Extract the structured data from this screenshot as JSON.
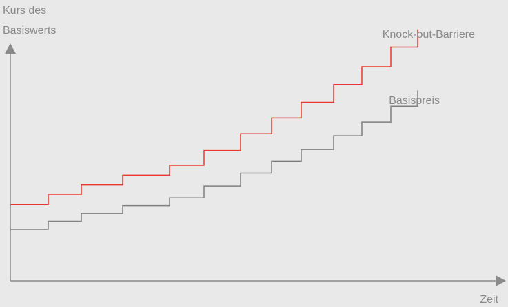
{
  "chart_data": {
    "type": "line",
    "title": "",
    "ylabel_lines": [
      "Kurs des",
      "Basiswerts"
    ],
    "xlabel": "Zeit",
    "grid": false,
    "legend": "none",
    "series": [
      {
        "name": "Knock-out-Barriere",
        "color": "#e8382e",
        "steps": [
          {
            "x": 0,
            "y": 0.25
          },
          {
            "x": 1,
            "y": 0.35
          },
          {
            "x": 2,
            "y": 0.45
          },
          {
            "x": 3,
            "y": 0.55
          },
          {
            "x": 4,
            "y": 0.65
          },
          {
            "x": 5,
            "y": 0.8
          },
          {
            "x": 6,
            "y": 0.97
          },
          {
            "x": 7,
            "y": 1.13
          },
          {
            "x": 8,
            "y": 1.29
          },
          {
            "x": 9,
            "y": 1.47
          },
          {
            "x": 10,
            "y": 1.65
          },
          {
            "x": 11,
            "y": 1.85
          },
          {
            "x": 12,
            "y": 2.03
          }
        ],
        "x_end": 13
      },
      {
        "name": "Basispreis",
        "color": "#7f7f7f",
        "steps": [
          {
            "x": 0,
            "y": 0.0
          },
          {
            "x": 1,
            "y": 0.08
          },
          {
            "x": 2,
            "y": 0.16
          },
          {
            "x": 3,
            "y": 0.24
          },
          {
            "x": 4,
            "y": 0.32
          },
          {
            "x": 5,
            "y": 0.44
          },
          {
            "x": 6,
            "y": 0.57
          },
          {
            "x": 7,
            "y": 0.69
          },
          {
            "x": 8,
            "y": 0.81
          },
          {
            "x": 9,
            "y": 0.95
          },
          {
            "x": 10,
            "y": 1.09
          },
          {
            "x": 11,
            "y": 1.25
          },
          {
            "x": 12,
            "y": 1.41
          }
        ],
        "x_end": 13
      }
    ]
  },
  "colors": {
    "axis": "#8a8a8a",
    "label": "#8a8a8a",
    "background": "#e9e9e9"
  }
}
